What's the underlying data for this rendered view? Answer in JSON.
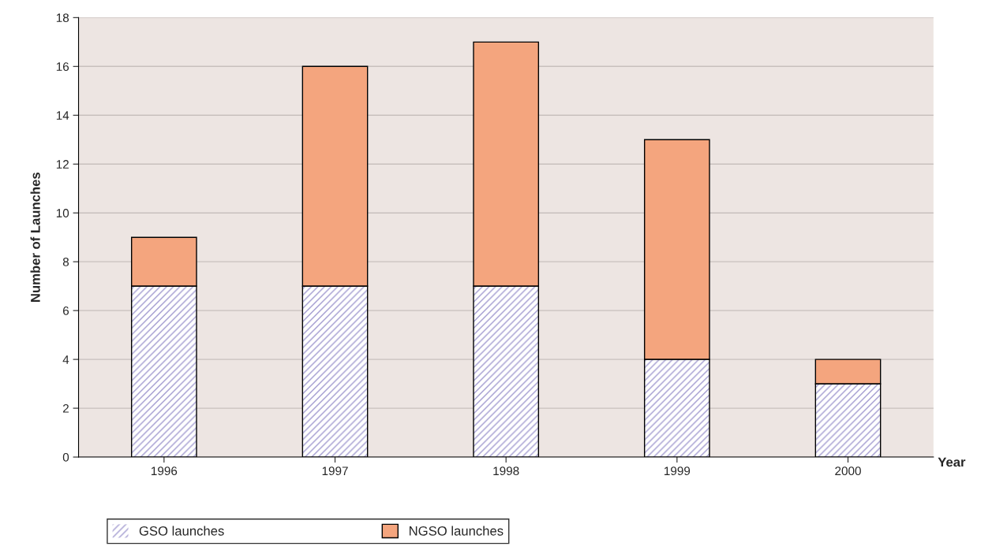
{
  "chart_data": {
    "type": "bar",
    "stacked": true,
    "xlabel": "Year",
    "ylabel": "Number of Launches",
    "categories": [
      "1996",
      "1997",
      "1998",
      "1999",
      "2000"
    ],
    "series": [
      {
        "name": "GSO launches",
        "color": "#a29bd0",
        "values": [
          7,
          7,
          7,
          4,
          3
        ]
      },
      {
        "name": "NGSO launches",
        "color": "#f4a57e",
        "values": [
          2,
          9,
          10,
          9,
          1
        ]
      }
    ],
    "ylim": [
      0,
      18
    ],
    "yticks": [
      0,
      2,
      4,
      6,
      8,
      10,
      12,
      14,
      16,
      18
    ],
    "grid": "y",
    "legend": "bottom"
  }
}
